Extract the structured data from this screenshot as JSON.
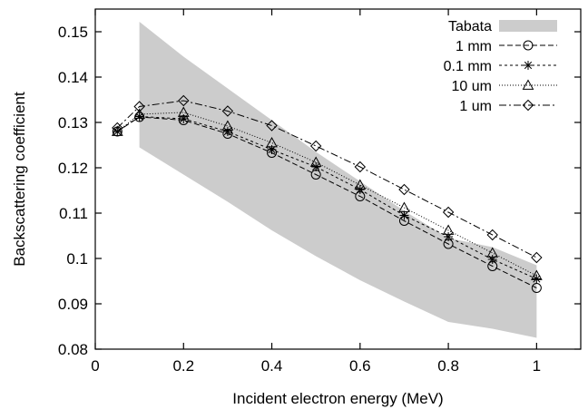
{
  "chart_data": {
    "type": "line",
    "title": "",
    "xlabel": "Incident electron energy (MeV)",
    "ylabel": "Backscattering coefficient",
    "xlim": [
      0,
      1.1
    ],
    "ylim": [
      0.08,
      0.155
    ],
    "xticks": [
      0,
      0.2,
      0.4,
      0.6,
      0.8,
      1
    ],
    "xtick_labels": [
      "0",
      "0.2",
      "0.4",
      "0.6",
      "0.8",
      "1"
    ],
    "yticks": [
      0.08,
      0.09,
      0.1,
      0.11,
      0.12,
      0.13,
      0.14,
      0.15
    ],
    "ytick_labels": [
      "0.08",
      "0.09",
      "0.1",
      "0.11",
      "0.12",
      "0.13",
      "0.14",
      "0.15"
    ],
    "grid": false,
    "legend_position": "top-right",
    "band": {
      "name": "Tabata",
      "color": "#cccccc",
      "x": [
        0.1,
        0.2,
        0.3,
        0.4,
        0.5,
        0.6,
        0.7,
        0.8,
        0.9,
        1.0
      ],
      "upper": [
        0.1522,
        0.1445,
        0.1375,
        0.1305,
        0.1235,
        0.117,
        0.1105,
        0.1045,
        0.1025,
        0.0985
      ],
      "lower": [
        0.1245,
        0.1185,
        0.1125,
        0.1062,
        0.1005,
        0.0952,
        0.0905,
        0.086,
        0.0845,
        0.0825
      ]
    },
    "x": [
      0.05,
      0.1,
      0.2,
      0.3,
      0.4,
      0.5,
      0.6,
      0.7,
      0.8,
      0.9,
      1.0
    ],
    "series": [
      {
        "name": "1 mm",
        "marker": "circle",
        "dash": "6,3",
        "values": [
          0.128,
          0.1312,
          0.1305,
          0.1275,
          0.1233,
          0.1185,
          0.1137,
          0.1083,
          0.1032,
          0.0983,
          0.0935
        ]
      },
      {
        "name": "0.1 mm",
        "marker": "star",
        "dash": "3,3",
        "values": [
          0.128,
          0.1313,
          0.1308,
          0.128,
          0.124,
          0.1202,
          0.1152,
          0.1095,
          0.1048,
          0.0998,
          0.0955
        ]
      },
      {
        "name": "10 um",
        "marker": "triangle",
        "dash": "1,2",
        "values": [
          0.128,
          0.1318,
          0.1322,
          0.1292,
          0.1255,
          0.1212,
          0.1162,
          0.1112,
          0.1062,
          0.1012,
          0.0962
        ]
      },
      {
        "name": "1 um",
        "marker": "diamond",
        "dash": "8,3,2,3",
        "values": [
          0.1288,
          0.1335,
          0.1348,
          0.1325,
          0.1293,
          0.1248,
          0.1202,
          0.1152,
          0.1102,
          0.1052,
          0.1002
        ]
      }
    ]
  }
}
